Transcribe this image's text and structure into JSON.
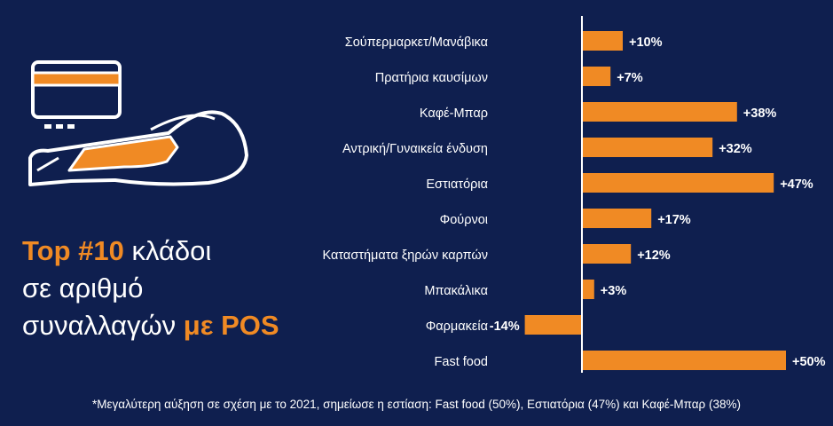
{
  "headline": {
    "part1": "Top #10",
    "part2": " κλάδοι",
    "part3": "σε αριθμό",
    "part4": "συναλλαγών ",
    "part5": "με POS"
  },
  "footnote": "*Μεγαλύτερη αύξηση σε σχέση με το 2021, σημείωσε η εστίαση: Fast food (50%), Εστιατόρια (47%) και Καφέ-Μπαρ (38%)",
  "colors": {
    "background": "#0f1f4f",
    "bar": "#f08a24",
    "text": "#ffffff"
  },
  "icons": [
    "credit-card-icon",
    "pos-terminal-icon"
  ],
  "chart_data": {
    "type": "bar",
    "orientation": "horizontal",
    "categories": [
      "Σούπερμαρκετ/Μανάβικα",
      "Πρατήρια καυσίμων",
      "Καφέ-Μπαρ",
      "Αντρική/Γυναικεία ένδυση",
      "Εστιατόρια",
      "Φούρνοι",
      "Καταστήματα ξηρών καρπών",
      "Μπακάλικα",
      "Φαρμακεία",
      "Fast food"
    ],
    "values": [
      10,
      7,
      38,
      32,
      47,
      17,
      12,
      3,
      -14,
      50
    ],
    "value_labels": [
      "+10%",
      "+7%",
      "+38%",
      "+32%",
      "+47%",
      "+17%",
      "+12%",
      "+3%",
      "-14%",
      "+50%"
    ],
    "unit": "%",
    "grid": false,
    "legend": "none"
  }
}
